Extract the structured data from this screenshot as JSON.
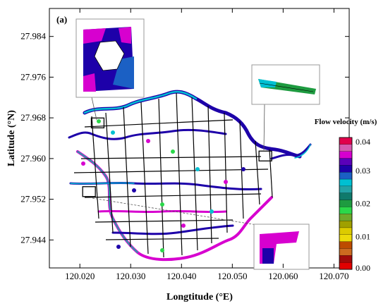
{
  "chart_data": {
    "type": "map",
    "panel_label": "(a)",
    "xlabel": "Longtitude (°E)",
    "ylabel": "Latitude (°N)",
    "xlim": [
      120.014,
      120.073
    ],
    "ylim": [
      27.9385,
      27.9895
    ],
    "x_ticks": [
      "120.020",
      "120.030",
      "120.040",
      "120.050",
      "120.060",
      "120.070"
    ],
    "y_ticks": [
      "27.944",
      "27.952",
      "27.960",
      "27.968",
      "27.976",
      "27.984"
    ],
    "x_tick_values": [
      120.02,
      120.03,
      120.04,
      120.05,
      120.06,
      120.07
    ],
    "y_tick_values": [
      27.944,
      27.952,
      27.96,
      27.968,
      27.976,
      27.984
    ],
    "colorbar": {
      "title": "Flow velocity (m/s)",
      "range": [
        0,
        0.04
      ],
      "labels": [
        "0.04",
        "0.03",
        "0.02",
        "0.01",
        "0.00"
      ],
      "label_values": [
        0.04,
        0.03,
        0.02,
        0.01,
        0.0
      ],
      "colors": [
        "#e1004c",
        "#d65ab0",
        "#d700cf",
        "#5a00b9",
        "#1d00a9",
        "#1b60c4",
        "#00c0d2",
        "#23a3a5",
        "#0f7a6b",
        "#1e9b40",
        "#2bd84a",
        "#6fa92b",
        "#a0a000",
        "#dccb00",
        "#ecda0a",
        "#bd4c00",
        "#cc6a20",
        "#a00a0a",
        "#e20000"
      ]
    },
    "network_style": {
      "channel_color": "#000000",
      "high_velocity_colors": [
        "#d700cf",
        "#1d00a9",
        "#2bd84a",
        "#00c0d2",
        "#23a3a5"
      ]
    },
    "inset_markers": [
      {
        "name": "north-west marker",
        "lon": 120.0235,
        "lat": 27.967
      },
      {
        "name": "east marker",
        "lon": 120.0565,
        "lat": 27.9605
      },
      {
        "name": "south-west marker",
        "lon": 120.0218,
        "lat": 27.9535
      }
    ]
  }
}
